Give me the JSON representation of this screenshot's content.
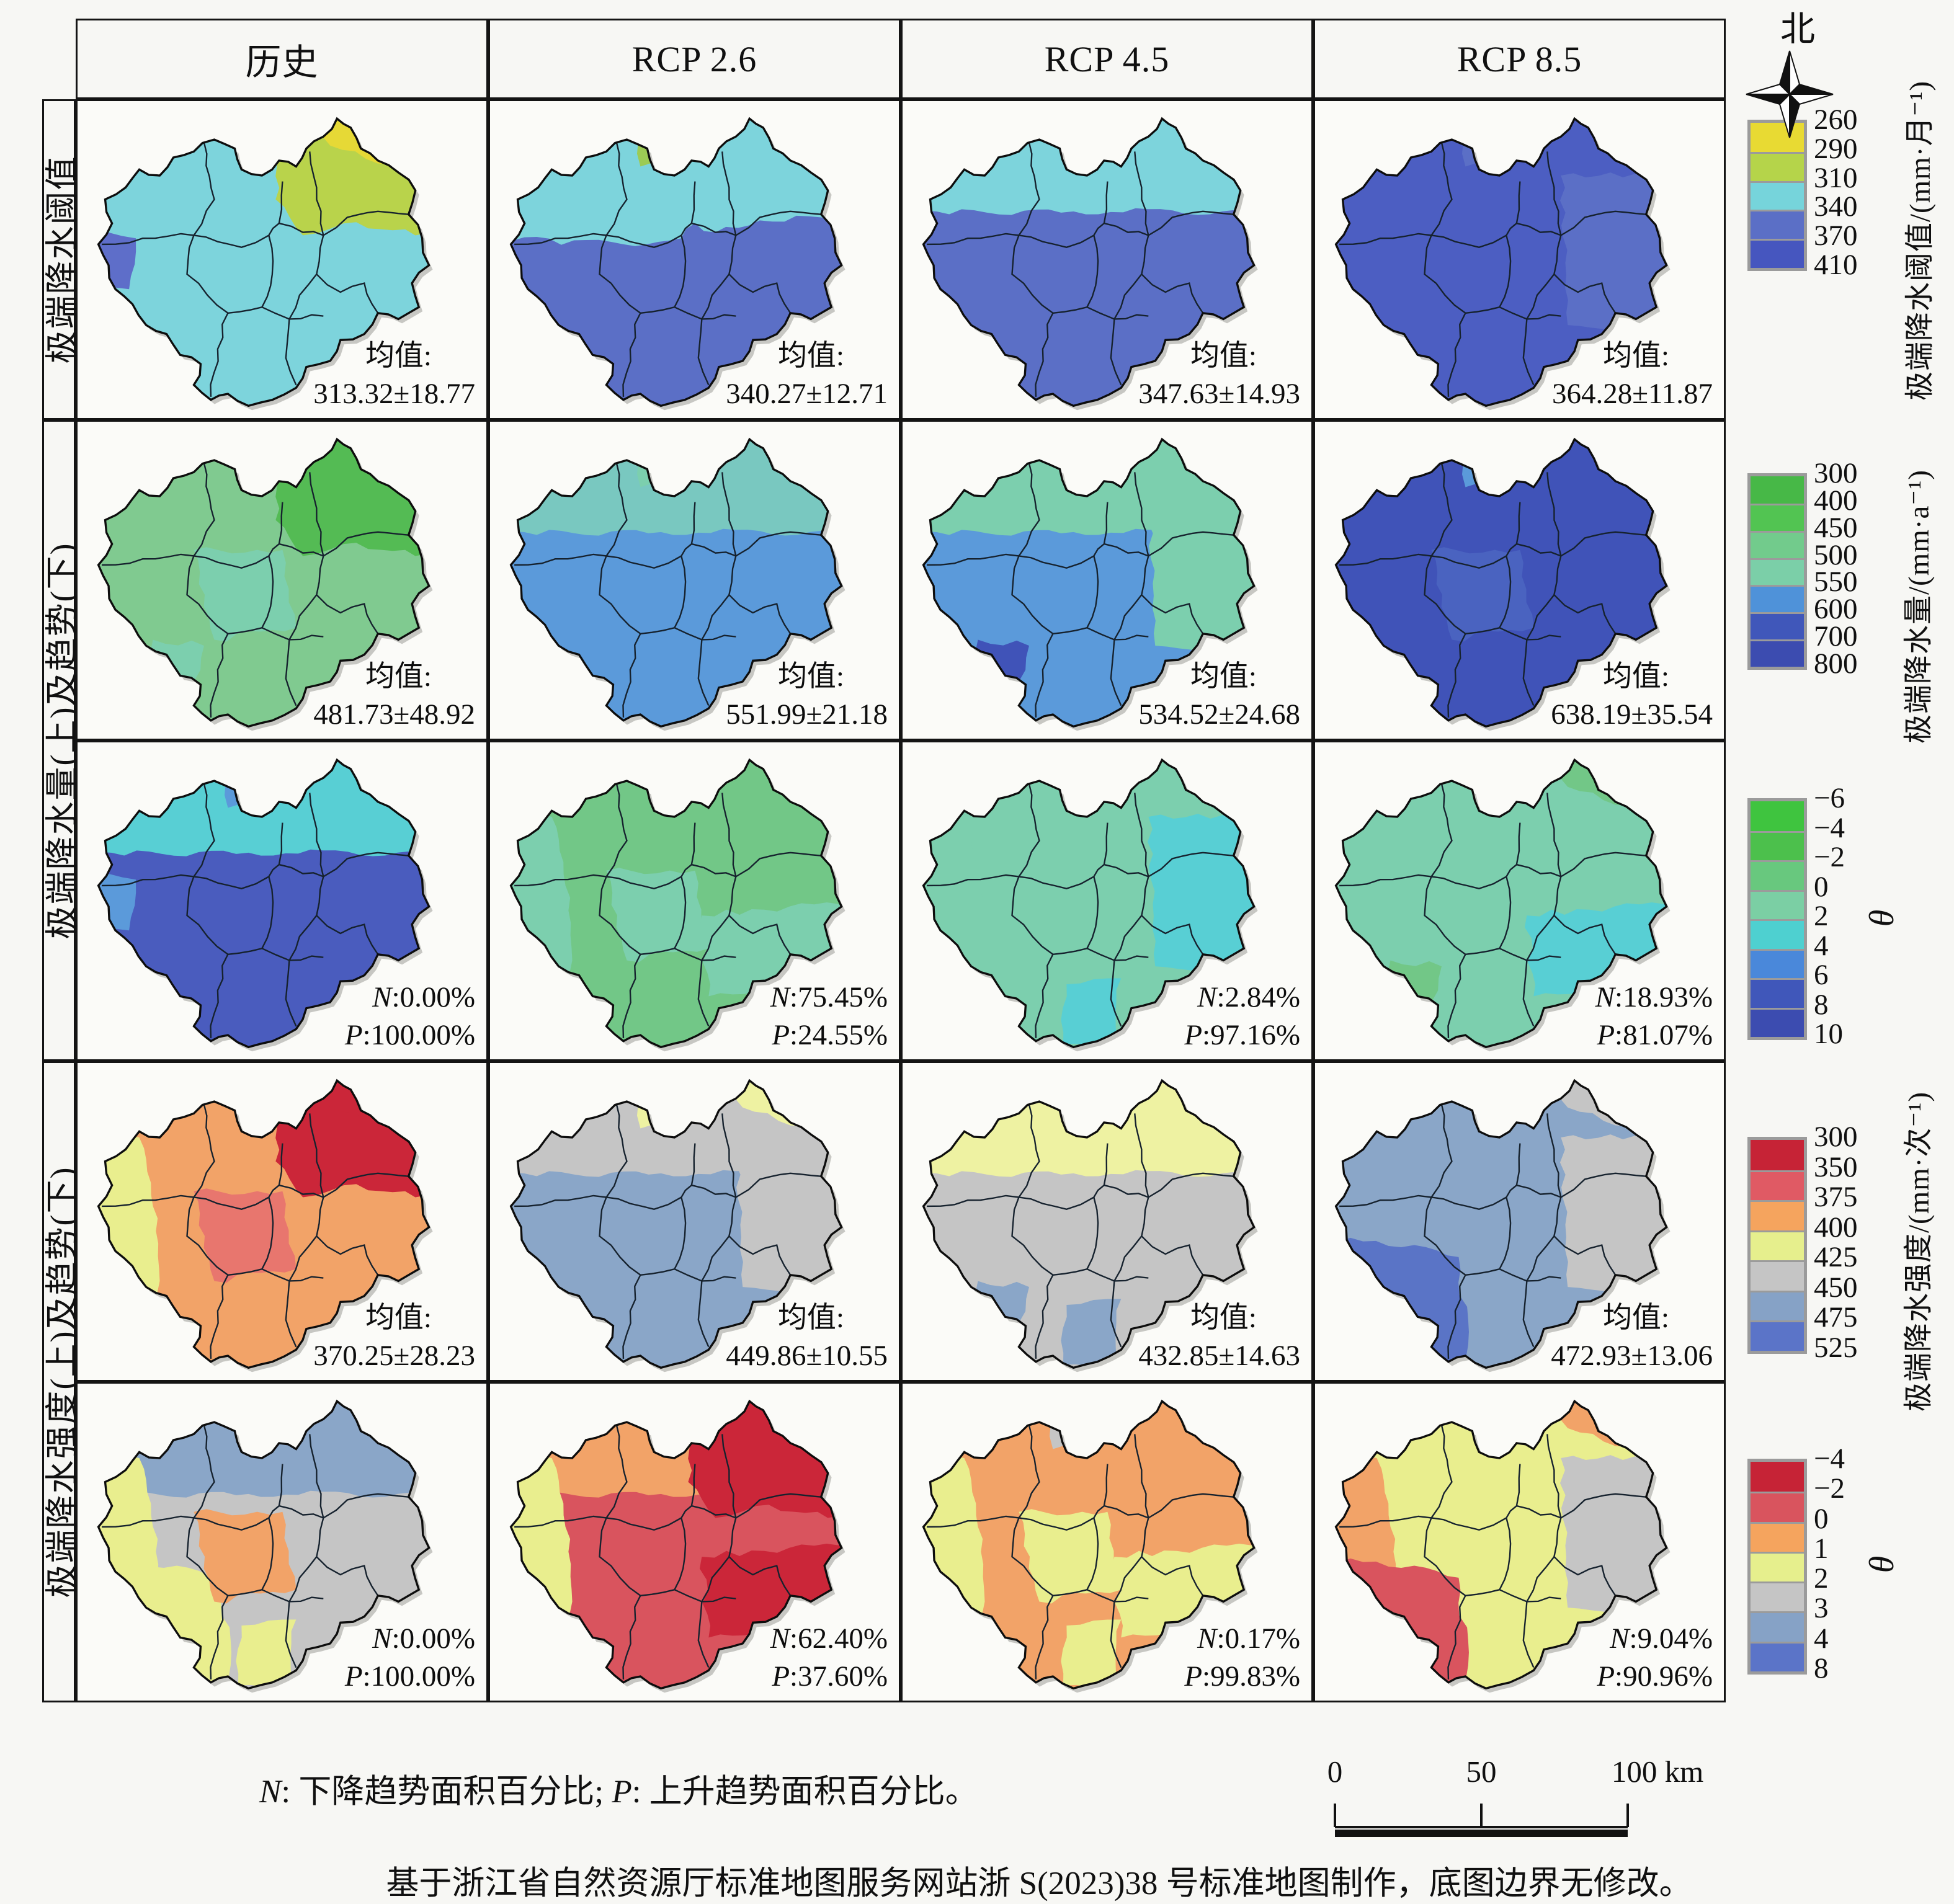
{
  "header": {
    "col_labels": [
      "历史",
      "RCP 2.6",
      "RCP 4.5",
      "RCP 8.5"
    ]
  },
  "row_groups": [
    {
      "label": "极端降水阈值"
    },
    {
      "label": "极端降水量(上)及趋势(下)"
    },
    {
      "label": "极端降水强度(上)及趋势(下)"
    }
  ],
  "compass": {
    "north_label": "北"
  },
  "rows": [
    {
      "cells": [
        {
          "ann_type": "mean",
          "ann": [
            "均值:",
            "313.32±18.77"
          ],
          "map": {
            "base": "#7dd4dc",
            "patches": [
              [
                "ne",
                "#b9d34b"
              ],
              [
                "ne_upper",
                "#e6d936"
              ],
              [
                "w_small",
                "#5e6ec9"
              ]
            ]
          }
        },
        {
          "ann_type": "mean",
          "ann": [
            "均值:",
            "340.27±12.71"
          ],
          "map": {
            "base": "#7dd4dc",
            "patches": [
              [
                "s_half",
                "#5b6fc6"
              ],
              [
                "top_small",
                "#9ccb55"
              ]
            ]
          }
        },
        {
          "ann_type": "mean",
          "ann": [
            "均值:",
            "347.63±14.93"
          ],
          "map": {
            "base": "#5b6fc6",
            "patches": [
              [
                "n_band_small",
                "#7dd4dc"
              ]
            ]
          }
        },
        {
          "ann_type": "mean",
          "ann": [
            "均值:",
            "364.28±11.87"
          ],
          "map": {
            "base": "#4c5ec2",
            "patches": [
              [
                "e",
                "#5b6fc6"
              ],
              [
                "top_small",
                "#5b6fc6"
              ]
            ]
          }
        }
      ]
    },
    {
      "cells": [
        {
          "ann_type": "mean",
          "ann": [
            "均值:",
            "481.73±48.92"
          ],
          "map": {
            "base": "#80ca90",
            "patches": [
              [
                "ne",
                "#54bb54"
              ],
              [
                "center",
                "#7ccfae"
              ],
              [
                "sw_small",
                "#7ccfae"
              ]
            ]
          }
        },
        {
          "ann_type": "mean",
          "ann": [
            "均值:",
            "551.99±21.18"
          ],
          "map": {
            "base": "#5b9ada",
            "patches": [
              [
                "n_band_small",
                "#79c8c0"
              ],
              [
                "top_small",
                "#7ccfae"
              ]
            ]
          }
        },
        {
          "ann_type": "mean",
          "ann": [
            "均值:",
            "534.52±24.68"
          ],
          "map": {
            "base": "#5b9ada",
            "patches": [
              [
                "n_band_small",
                "#7ccfae"
              ],
              [
                "e",
                "#7ccfae"
              ],
              [
                "sw_small",
                "#4053b8"
              ]
            ]
          }
        },
        {
          "ann_type": "mean",
          "ann": [
            "均值:",
            "638.19±35.54"
          ],
          "map": {
            "base": "#4053b8",
            "patches": [
              [
                "top_small",
                "#5b9ada"
              ],
              [
                "center",
                "#4a63c0"
              ]
            ]
          }
        }
      ]
    },
    {
      "cells": [
        {
          "ann_type": "np",
          "ann": [
            "N:0.00%",
            "P:100.00%"
          ],
          "map": {
            "base": "#4a5cbe",
            "patches": [
              [
                "n_band_small",
                "#58cfd4"
              ],
              [
                "top_small",
                "#5b9ada"
              ],
              [
                "w_small",
                "#5b9ada"
              ]
            ]
          }
        },
        {
          "ann_type": "np",
          "ann": [
            "N:75.45%",
            "P:24.55%"
          ],
          "map": {
            "base": "#72c787",
            "patches": [
              [
                "center",
                "#7ccfae"
              ],
              [
                "se",
                "#7ccfae"
              ],
              [
                "w_strip",
                "#7ccfae"
              ]
            ]
          }
        },
        {
          "ann_type": "np",
          "ann": [
            "N:2.84%",
            "P:97.16%"
          ],
          "map": {
            "base": "#7ccfae",
            "patches": [
              [
                "e",
                "#58cfd4"
              ],
              [
                "s_small",
                "#58cfd4"
              ],
              [
                "w_strip",
                "#7ccfae"
              ]
            ]
          }
        },
        {
          "ann_type": "np",
          "ann": [
            "N:18.93%",
            "P:81.07%"
          ],
          "map": {
            "base": "#7ccfae",
            "patches": [
              [
                "se",
                "#58cfd4"
              ],
              [
                "sw_small",
                "#72c787"
              ],
              [
                "ne_upper",
                "#72c787"
              ]
            ]
          }
        }
      ]
    },
    {
      "cells": [
        {
          "ann_type": "mean",
          "ann": [
            "均值:",
            "370.25±28.23"
          ],
          "map": {
            "base": "#f2a368",
            "patches": [
              [
                "ne",
                "#cb2639"
              ],
              [
                "ne_upper",
                "#cb2639"
              ],
              [
                "w_strip",
                "#e9ee8e"
              ],
              [
                "center",
                "#e8766e"
              ]
            ]
          }
        },
        {
          "ann_type": "mean",
          "ann": [
            "均值:",
            "449.86±10.55"
          ],
          "map": {
            "base": "#8aa6c8",
            "patches": [
              [
                "n_band_small",
                "#c5c5c5"
              ],
              [
                "ne_upper",
                "#eef2a2"
              ],
              [
                "e",
                "#c5c5c5"
              ],
              [
                "top_small",
                "#eef2a2"
              ]
            ]
          }
        },
        {
          "ann_type": "mean",
          "ann": [
            "均值:",
            "432.85±14.63"
          ],
          "map": {
            "base": "#c5c5c5",
            "patches": [
              [
                "n_band_small",
                "#eef2a2"
              ],
              [
                "s_small",
                "#8aa6c8"
              ],
              [
                "sw_small",
                "#8aa6c8"
              ]
            ]
          }
        },
        {
          "ann_type": "mean",
          "ann": [
            "均值:",
            "472.93±13.06"
          ],
          "map": {
            "base": "#8aa6c8",
            "patches": [
              [
                "sw",
                "#5a74c6"
              ],
              [
                "e",
                "#c5c5c5"
              ],
              [
                "ne_upper",
                "#c5c5c5"
              ]
            ]
          }
        }
      ]
    },
    {
      "cells": [
        {
          "ann_type": "np",
          "ann": [
            "N:0.00%",
            "P:100.00%"
          ],
          "map": {
            "base": "#c5c5c5",
            "patches": [
              [
                "n_band_small",
                "#8aa6c8"
              ],
              [
                "w_strip",
                "#e9ee8e"
              ],
              [
                "sw",
                "#e9ee8e"
              ],
              [
                "center",
                "#f2a368"
              ],
              [
                "s_small",
                "#e9ee8e"
              ]
            ]
          }
        },
        {
          "ann_type": "np",
          "ann": [
            "N:62.40%",
            "P:37.60%"
          ],
          "map": {
            "base": "#d9545e",
            "patches": [
              [
                "n_band_small",
                "#f2a368"
              ],
              [
                "w_strip",
                "#e9ee8e"
              ],
              [
                "ne",
                "#cb2639"
              ],
              [
                "se",
                "#cb2639"
              ]
            ]
          }
        },
        {
          "ann_type": "np",
          "ann": [
            "N:0.17%",
            "P:99.83%"
          ],
          "map": {
            "base": "#f2a368",
            "patches": [
              [
                "w_strip",
                "#e9ee8e"
              ],
              [
                "center",
                "#e9ee8e"
              ],
              [
                "top_small",
                "#c5c5c5"
              ],
              [
                "se",
                "#e9ee8e"
              ],
              [
                "s_small",
                "#e9ee8e"
              ]
            ]
          }
        },
        {
          "ann_type": "np",
          "ann": [
            "N:9.04%",
            "P:90.96%"
          ],
          "map": {
            "base": "#e9ee8e",
            "patches": [
              [
                "w_strip",
                "#f2a368"
              ],
              [
                "sw",
                "#d9545e"
              ],
              [
                "e",
                "#c5c5c5"
              ],
              [
                "ne_upper",
                "#f2a368"
              ]
            ]
          }
        }
      ]
    }
  ],
  "legends": [
    {
      "title": "极端降水阈值/(mm·月⁻¹)",
      "ticks": [
        "260",
        "290",
        "310",
        "340",
        "370",
        "410"
      ],
      "colors": [
        "#e8da33",
        "#b5d44a",
        "#76d4db",
        "#5b6fc6",
        "#4656bf"
      ]
    },
    {
      "title": "极端降水量/(mm·a⁻¹)",
      "ticks": [
        "300",
        "400",
        "450",
        "500",
        "550",
        "600",
        "700",
        "800"
      ],
      "colors": [
        "#47b847",
        "#52c452",
        "#72cb8c",
        "#7bcfa8",
        "#4f92d9",
        "#4057ba",
        "#3c4cb0"
      ]
    },
    {
      "title": "θ",
      "ticks": [
        "−6",
        "−4",
        "−2",
        "0",
        "2",
        "4",
        "6",
        "8",
        "10"
      ],
      "colors": [
        "#3fc43f",
        "#4cc04c",
        "#68c87e",
        "#7bcfa4",
        "#4ed0d0",
        "#4a88da",
        "#4057ba",
        "#3c4cb0"
      ]
    },
    {
      "title": "极端降水强度/(mm·次⁻¹)",
      "ticks": [
        "300",
        "350",
        "375",
        "400",
        "425",
        "450",
        "475",
        "525"
      ],
      "colors": [
        "#c62336",
        "#e05a64",
        "#f5a45e",
        "#e6ef8d",
        "#c5c5c5",
        "#86a2c6",
        "#5b74c8"
      ]
    },
    {
      "title": "θ",
      "ticks": [
        "−4",
        "−2",
        "0",
        "1",
        "2",
        "3",
        "4",
        "8"
      ],
      "colors": [
        "#c62336",
        "#d9545e",
        "#f5a45e",
        "#e6ef8d",
        "#c5c5c5",
        "#86a2c6",
        "#5b74c8"
      ]
    }
  ],
  "scalebar": {
    "labels": [
      "0",
      "50",
      "100 km"
    ]
  },
  "footnote": {
    "n_label": "N",
    "n_text": ": 下降趋势面积百分比; ",
    "p_label": "P",
    "p_text": ": 上升趋势面积百分比。"
  },
  "caption": "基于浙江省自然资源厅标准地图服务网站浙 S(2023)38 号标准地图制作，底图边界无修改。",
  "chart_data": {
    "type": "table",
    "scenarios": [
      "历史",
      "RCP 2.6",
      "RCP 4.5",
      "RCP 8.5"
    ],
    "metrics": [
      {
        "name": "极端降水阈值 均值/(mm·月⁻¹)",
        "values": [
          "313.32±18.77",
          "340.27±12.71",
          "347.63±14.93",
          "364.28±11.87"
        ]
      },
      {
        "name": "极端降水量 均值/(mm·a⁻¹)",
        "values": [
          "481.73±48.92",
          "551.99±21.18",
          "534.52±24.68",
          "638.19±35.54"
        ]
      },
      {
        "name": "极端降水量趋势 N(下降面积百分比)",
        "values": [
          "0.00%",
          "75.45%",
          "2.84%",
          "18.93%"
        ]
      },
      {
        "name": "极端降水量趋势 P(上升面积百分比)",
        "values": [
          "100.00%",
          "24.55%",
          "97.16%",
          "81.07%"
        ]
      },
      {
        "name": "极端降水强度 均值/(mm·次⁻¹)",
        "values": [
          "370.25±28.23",
          "449.86±10.55",
          "432.85±14.63",
          "472.93±13.06"
        ]
      },
      {
        "name": "极端降水强度趋势 N(下降面积百分比)",
        "values": [
          "0.00%",
          "62.40%",
          "0.17%",
          "9.04%"
        ]
      },
      {
        "name": "极端降水强度趋势 P(上升面积百分比)",
        "values": [
          "100.00%",
          "37.60%",
          "99.83%",
          "90.96%"
        ]
      }
    ]
  }
}
